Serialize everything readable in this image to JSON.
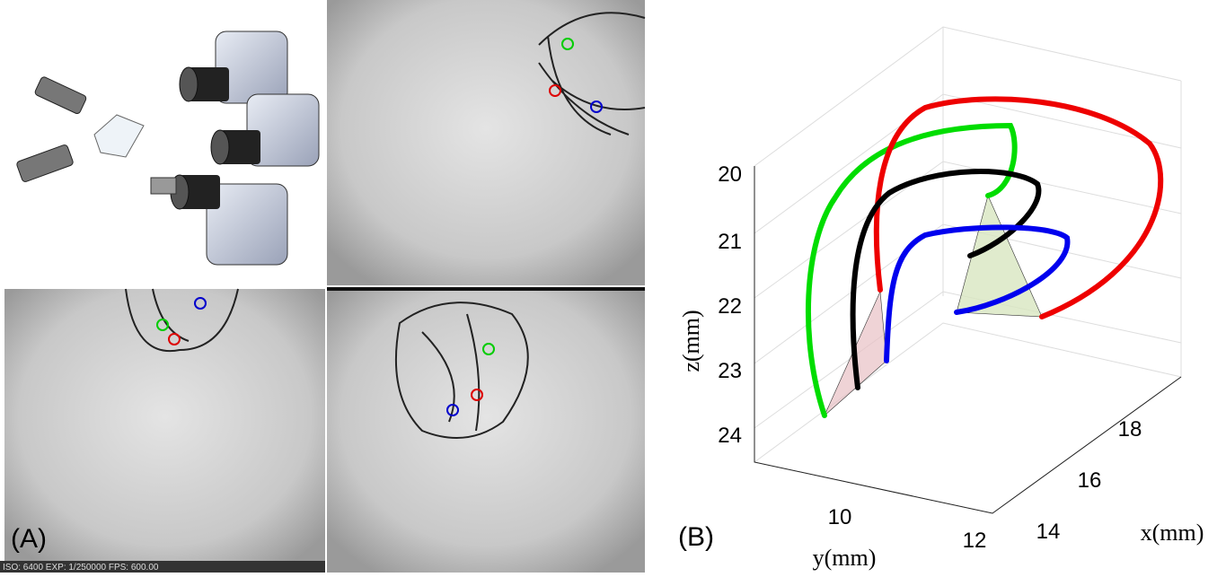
{
  "panel_a": {
    "label": "(A)",
    "overlay": "ISO: 6400 EXP: 1/250000 FPS: 600.00"
  },
  "panel_b": {
    "label": "(B)",
    "z_axis": {
      "label": "z(mm)",
      "ticks": [
        "20",
        "21",
        "22",
        "23",
        "24"
      ]
    },
    "y_axis": {
      "label": "y(mm)",
      "ticks": [
        "10",
        "12"
      ]
    },
    "x_axis": {
      "label": "x(mm)",
      "ticks": [
        "14",
        "16",
        "18"
      ]
    }
  }
}
